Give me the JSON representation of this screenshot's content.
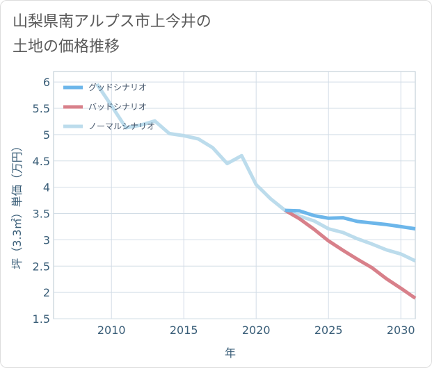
{
  "title_lines": [
    "山梨県南アルプス市上今井の",
    "土地の価格推移"
  ],
  "chart_data": {
    "type": "line",
    "xlabel": "年",
    "ylabel": "坪（3.3㎡）単価（万円）",
    "xlim": [
      2006,
      2031
    ],
    "ylim": [
      1.5,
      6.2
    ],
    "xticks": [
      2010,
      2015,
      2020,
      2025,
      2030
    ],
    "yticks": [
      1.5,
      2,
      2.5,
      3,
      3.5,
      4,
      4.5,
      5,
      5.5,
      6
    ],
    "ytick_labels": [
      "1.5",
      "2",
      "2.5",
      "3",
      "3.5",
      "4",
      "4.5",
      "5",
      "5.5",
      "6"
    ],
    "grid": true,
    "legend_position": "top-left",
    "series": [
      {
        "name": "グッドシナリオ",
        "color": "#6cb6ea",
        "x": [
          2022,
          2023,
          2024,
          2025,
          2026,
          2027,
          2028,
          2029,
          2030,
          2031
        ],
        "y": [
          3.56,
          3.55,
          3.46,
          3.41,
          3.42,
          3.35,
          3.32,
          3.29,
          3.25,
          3.21
        ]
      },
      {
        "name": "バッドシナリオ",
        "color": "#d8808a",
        "x": [
          2022,
          2023,
          2024,
          2025,
          2026,
          2027,
          2028,
          2029,
          2030,
          2031
        ],
        "y": [
          3.56,
          3.4,
          3.2,
          2.98,
          2.8,
          2.63,
          2.47,
          2.26,
          2.08,
          1.89
        ]
      },
      {
        "name": "ノーマルシナリオ",
        "color": "#bcdcec",
        "x": [
          2009,
          2010,
          2011,
          2012,
          2013,
          2014,
          2015,
          2016,
          2017,
          2018,
          2019,
          2020,
          2021,
          2022,
          2023,
          2024,
          2025,
          2026,
          2027,
          2028,
          2029,
          2030,
          2031
        ],
        "y": [
          5.96,
          5.55,
          5.13,
          5.18,
          5.26,
          5.02,
          4.98,
          4.92,
          4.75,
          4.45,
          4.6,
          4.05,
          3.78,
          3.56,
          3.45,
          3.36,
          3.21,
          3.14,
          3.02,
          2.92,
          2.81,
          2.73,
          2.6
        ]
      }
    ]
  }
}
